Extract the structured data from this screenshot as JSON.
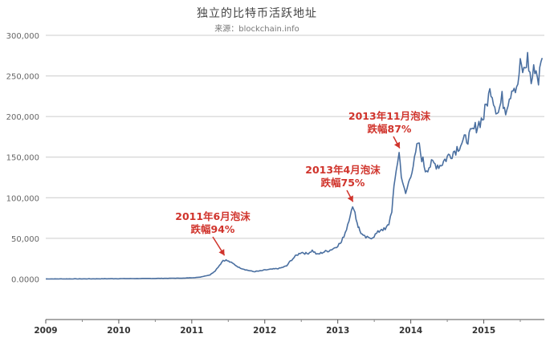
{
  "chart_data": {
    "type": "line",
    "title": "独立的比特币活跃地址",
    "subtitle": "来源：blockchain.info",
    "xlabel": "",
    "ylabel": "",
    "x_ticks": [
      "2009",
      "2010",
      "2011",
      "2012",
      "2013",
      "2014",
      "2015"
    ],
    "y_ticks": [
      "0.0000",
      "50,000",
      "100,000",
      "150,000",
      "200,000",
      "250,000",
      "300,000"
    ],
    "ylim": [
      -50000,
      300000
    ],
    "xlim": [
      2009.0,
      2015.83
    ],
    "grid": true,
    "legend": "none",
    "series": [
      {
        "color": "#4a6fa0",
        "x": [
          2009.0,
          2009.5,
          2010.0,
          2010.5,
          2010.9,
          2011.1,
          2011.25,
          2011.32,
          2011.38,
          2011.43,
          2011.47,
          2011.52,
          2011.58,
          2011.65,
          2011.75,
          2011.85,
          2011.95,
          2012.0,
          2012.1,
          2012.2,
          2012.3,
          2012.35,
          2012.42,
          2012.5,
          2012.58,
          2012.65,
          2012.72,
          2012.8,
          2012.88,
          2012.95,
          2013.05,
          2013.12,
          2013.17,
          2013.22,
          2013.25,
          2013.28,
          2013.3,
          2013.35,
          2013.42,
          2013.48,
          2013.55,
          2013.6,
          2013.65,
          2013.7,
          2013.74,
          2013.77,
          2013.8,
          2013.84,
          2013.87,
          2013.9,
          2013.93,
          2013.97,
          2014.0,
          2014.05,
          2014.1,
          2014.15,
          2014.2,
          2014.3,
          2014.4,
          2014.5,
          2014.6,
          2014.7,
          2014.8,
          2014.9,
          2015.0,
          2015.05,
          2015.1,
          2015.15,
          2015.2,
          2015.25,
          2015.3,
          2015.35,
          2015.4,
          2015.45,
          2015.5,
          2015.55,
          2015.6,
          2015.65,
          2015.7,
          2015.75,
          2015.8
        ],
        "values": [
          0,
          100,
          300,
          600,
          1000,
          2000,
          5000,
          10000,
          17000,
          23000,
          23000,
          21000,
          18000,
          14000,
          11000,
          9000,
          10000,
          11000,
          12000,
          13000,
          16000,
          22000,
          28000,
          33000,
          31000,
          35000,
          30000,
          33000,
          35000,
          38000,
          45000,
          62000,
          80000,
          89000,
          75000,
          65000,
          60000,
          52000,
          50000,
          52000,
          57000,
          62000,
          60000,
          68000,
          85000,
          110000,
          135000,
          155000,
          130000,
          112000,
          105000,
          118000,
          130000,
          145000,
          168000,
          150000,
          135000,
          142000,
          140000,
          150000,
          158000,
          168000,
          175000,
          188000,
          200000,
          220000,
          235000,
          215000,
          205000,
          222000,
          210000,
          225000,
          240000,
          230000,
          262000,
          255000,
          272000,
          242000,
          262000,
          245000,
          272000
        ]
      }
    ],
    "annotations": [
      {
        "line1": "2011年6月泡沫",
        "line2": "跌幅94%",
        "x": 2011.47,
        "y": 23000
      },
      {
        "line1": "2013年4月泡沫",
        "line2": "跌幅75%",
        "x": 2013.23,
        "y": 89000
      },
      {
        "line1": "2013年11月泡沫",
        "line2": "跌幅87%",
        "x": 2013.87,
        "y": 155000
      }
    ]
  }
}
